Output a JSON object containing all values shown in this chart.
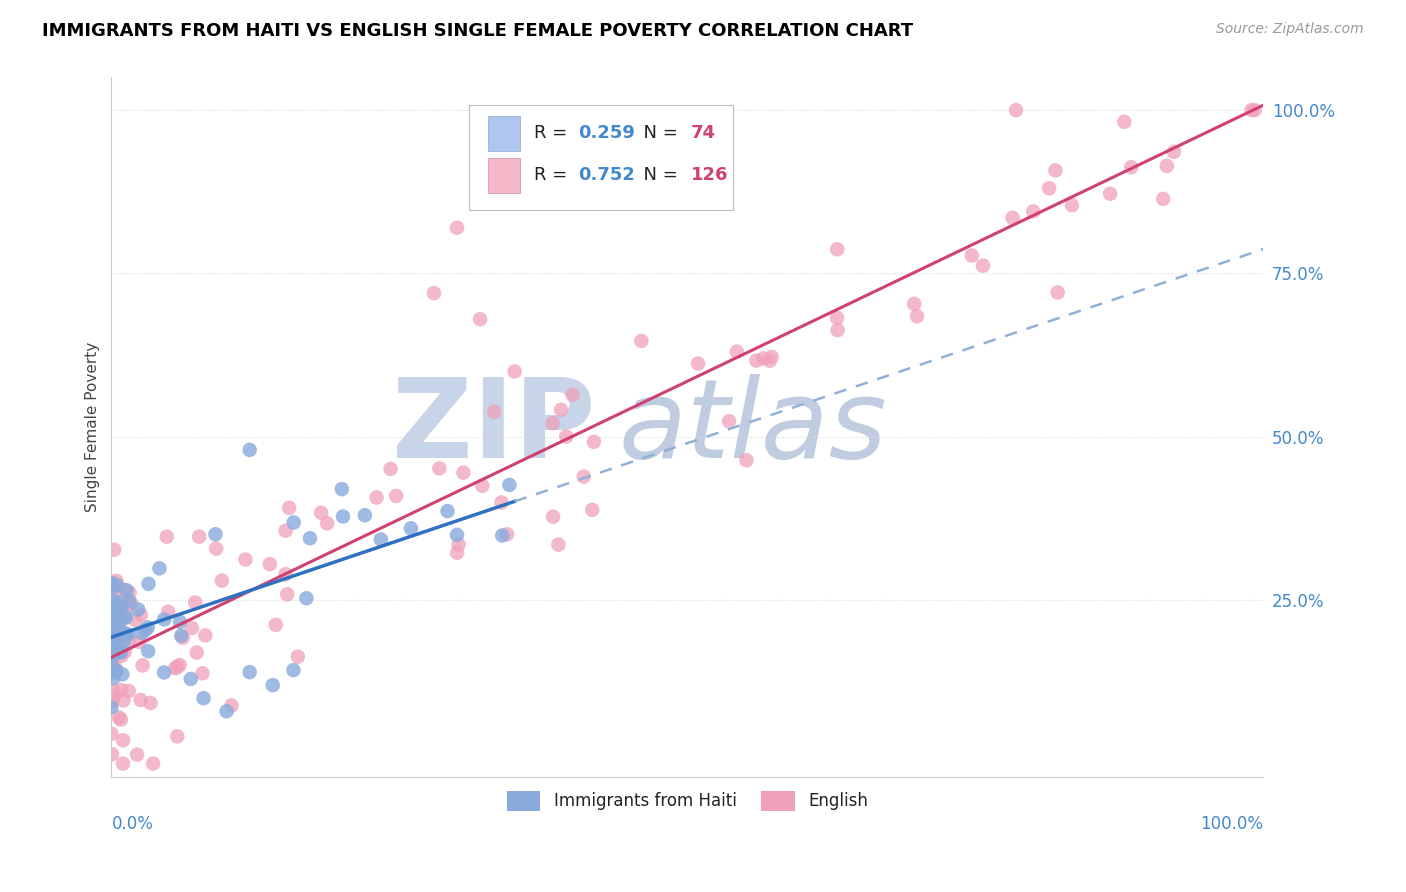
{
  "title": "IMMIGRANTS FROM HAITI VS ENGLISH SINGLE FEMALE POVERTY CORRELATION CHART",
  "source": "Source: ZipAtlas.com",
  "ylabel": "Single Female Poverty",
  "legend_color1": "#aec6f0",
  "legend_color2": "#f4b8c8",
  "scatter1_color": "#88aadd",
  "scatter2_color": "#f0a0b8",
  "line1_color": "#3070c0",
  "line2_color": "#d04070",
  "dash_line_color": "#90b0d8",
  "watermark_zip_color": "#c8d4e8",
  "watermark_atlas_color": "#c0cce0",
  "background_color": "#ffffff",
  "grid_color": "#d8d8d8",
  "title_fontsize": 13,
  "axis_label_color": "#4488cc",
  "legend_N_color": "#d04070",
  "R1": "0.259",
  "N1": "74",
  "R2": "0.752",
  "N2": "126",
  "xlim": [
    0.0,
    1.0
  ],
  "ylim": [
    -0.02,
    1.05
  ]
}
